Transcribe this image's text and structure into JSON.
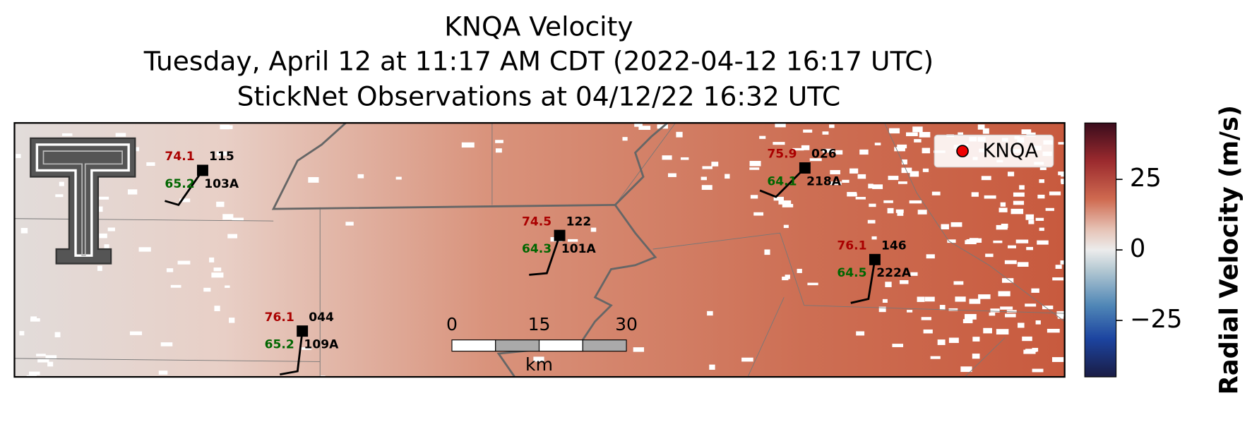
{
  "title": [
    "KNQA Velocity",
    "Tuesday, April 12 at 11:17 AM CDT (2022-04-12 16:17 UTC)",
    "StickNet Observations at 04/12/22 16:32 UTC"
  ],
  "map": {
    "stations": [
      {
        "temp": 74.1,
        "dewpoint": 65.2,
        "id": "115",
        "code": "103A"
      },
      {
        "temp": 76.1,
        "dewpoint": 65.2,
        "id": "044",
        "code": "109A"
      },
      {
        "temp": 74.5,
        "dewpoint": 64.3,
        "id": "122",
        "code": "101A"
      },
      {
        "temp": 75.9,
        "dewpoint": 64.1,
        "id": "026",
        "code": "218A"
      },
      {
        "temp": 76.1,
        "dewpoint": 64.5,
        "id": "146",
        "code": "222A"
      }
    ],
    "legend": {
      "label": "KNQA"
    },
    "scale_bar": {
      "ticks": [
        0,
        15,
        30
      ],
      "unit": "km"
    }
  },
  "colorbar": {
    "label": "Radial Velocity (m/s)",
    "lim": [
      -45,
      45
    ],
    "ticks": [
      25,
      0,
      {
        "value": -25,
        "label": "−25"
      }
    ]
  }
}
